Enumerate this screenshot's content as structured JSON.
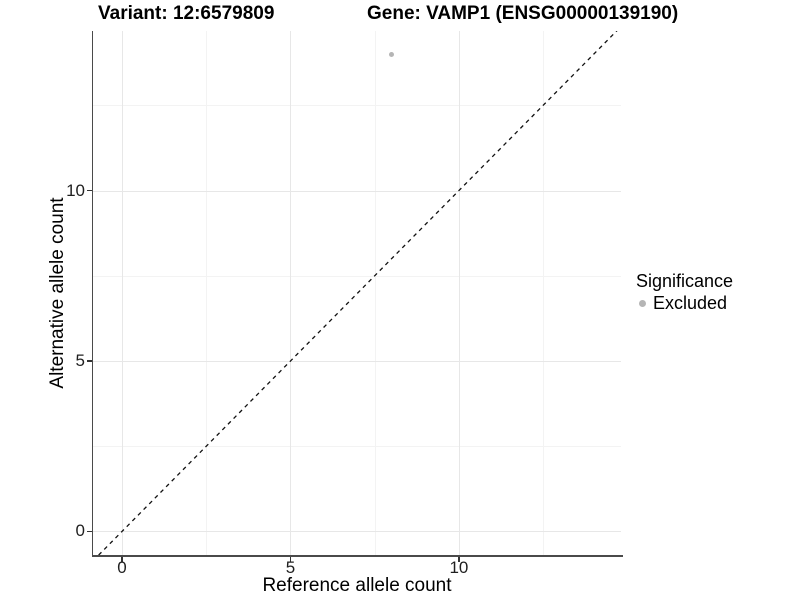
{
  "chart_data": {
    "type": "scatter",
    "titles": {
      "variant": "Variant: 12:6579809",
      "gene": "Gene: VAMP1 (ENSG00000139190)"
    },
    "xlabel": "Reference allele count",
    "ylabel": "Alternative allele count",
    "xlim": [
      -0.86,
      14.81
    ],
    "ylim": [
      -0.69,
      14.68
    ],
    "x_ticks": [
      0,
      5,
      10
    ],
    "y_ticks": [
      0,
      5,
      10
    ],
    "x_minor_ticks": [
      2.5,
      7.5,
      12.5
    ],
    "y_minor_ticks": [
      2.5,
      7.5,
      12.5
    ],
    "grid": true,
    "points": [
      {
        "x": 8,
        "y": 14,
        "series": "Excluded"
      }
    ],
    "reference_line": {
      "type": "identity",
      "style": "dashed",
      "color": "#111111"
    },
    "legend": {
      "title": "Significance",
      "position": "right",
      "items": [
        {
          "label": "Excluded",
          "color": "#b5b5b5"
        }
      ]
    }
  },
  "colors": {
    "background": "#ffffff",
    "point": "#b5b5b5",
    "grid_major": "#e7e7e7",
    "grid_minor": "#f3f3f3",
    "axis_line": "#4a4a4a",
    "text": "#000000"
  }
}
